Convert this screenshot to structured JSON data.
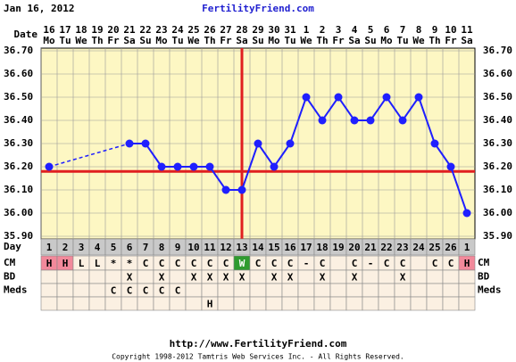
{
  "header": {
    "date": "Jan 16, 2012",
    "site": "FertilityFriend.com"
  },
  "chart_data": {
    "type": "line",
    "row_labels": {
      "date": "Date",
      "day": "Day",
      "cm": "CM",
      "bd": "BD",
      "meds": "Meds"
    },
    "categories": [
      "16",
      "17",
      "18",
      "19",
      "20",
      "21",
      "22",
      "23",
      "24",
      "25",
      "26",
      "27",
      "28",
      "29",
      "30",
      "31",
      "1",
      "2",
      "3",
      "4",
      "5",
      "6",
      "7",
      "8",
      "9",
      "10",
      "11"
    ],
    "weekdays": [
      "Mo",
      "Tu",
      "We",
      "Th",
      "Fr",
      "Sa",
      "Su",
      "Mo",
      "Tu",
      "We",
      "Th",
      "Fr",
      "Sa",
      "Su",
      "Mo",
      "Tu",
      "We",
      "Th",
      "Fr",
      "Sa",
      "Su",
      "Mo",
      "Tu",
      "We",
      "Th",
      "Fr",
      "Sa"
    ],
    "values": [
      36.2,
      null,
      null,
      null,
      null,
      36.3,
      36.3,
      36.2,
      36.2,
      36.2,
      36.2,
      36.1,
      36.1,
      36.3,
      36.2,
      36.3,
      36.5,
      36.4,
      36.5,
      36.4,
      36.4,
      36.5,
      36.4,
      36.5,
      36.3,
      36.2,
      36.0
    ],
    "color": "#1f1fff",
    "ylim": [
      35.9,
      36.7
    ],
    "yticks": [
      {
        "value": 35.9,
        "label": "35.90"
      },
      {
        "value": 36.0,
        "label": "36.00"
      },
      {
        "value": 36.1,
        "label": "36.10"
      },
      {
        "value": 36.2,
        "label": "36.20"
      },
      {
        "value": 36.3,
        "label": "36.30"
      },
      {
        "value": 36.4,
        "label": "36.40"
      },
      {
        "value": 36.5,
        "label": "36.50"
      },
      {
        "value": 36.6,
        "label": "36.60"
      },
      {
        "value": 36.7,
        "label": "36.70"
      }
    ],
    "grid": true,
    "coverline": 36.18,
    "marker_color": "#e01f1f",
    "ovulation_category": "28",
    "cycle_days": [
      "1",
      "2",
      "3",
      "4",
      "5",
      "6",
      "7",
      "8",
      "9",
      "10",
      "11",
      "12",
      "13",
      "14",
      "15",
      "16",
      "17",
      "18",
      "19",
      "20",
      "21",
      "22",
      "23",
      "24",
      "25",
      "26",
      "1"
    ],
    "cm": [
      "H",
      "H",
      "L",
      "L",
      "*",
      "*",
      "C",
      "C",
      "C",
      "C",
      "C",
      "C",
      "W",
      "C",
      "C",
      "C",
      "-",
      "C",
      null,
      "C",
      "-",
      "C",
      "C",
      null,
      "C",
      "C",
      "H"
    ],
    "cm_highlight": {
      "H": "#f2899b",
      "W": "#2f9b2f"
    },
    "bd": [
      null,
      null,
      null,
      null,
      null,
      "X",
      null,
      "X",
      null,
      "X",
      "X",
      "X",
      "X",
      null,
      "X",
      "X",
      null,
      "X",
      null,
      "X",
      null,
      null,
      "X",
      null,
      null,
      null,
      null
    ],
    "meds": [
      null,
      null,
      null,
      null,
      "C",
      "C",
      "C",
      "C",
      "C",
      null,
      null,
      null,
      null,
      null,
      null,
      null,
      null,
      null,
      null,
      null,
      null,
      null,
      null,
      null,
      null,
      null,
      null
    ],
    "other": [
      null,
      null,
      null,
      null,
      null,
      null,
      null,
      null,
      null,
      null,
      "H",
      null,
      null,
      null,
      null,
      null,
      null,
      null,
      null,
      null,
      null,
      null,
      null,
      null,
      null,
      null,
      null
    ]
  },
  "footer": {
    "url": "http://www.FertilityFriend.com",
    "copyright": "Copyright 1998-2012 Tamtris Web Services Inc. - All Rights Reserved."
  }
}
